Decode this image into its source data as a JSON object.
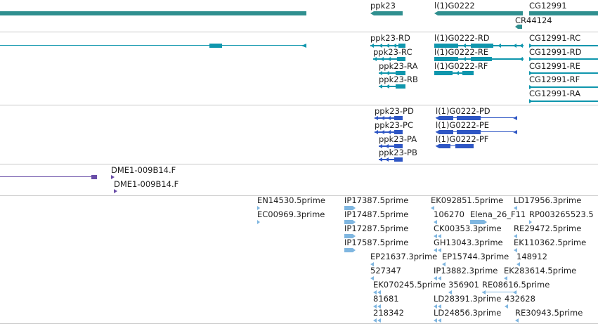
{
  "colors": {
    "gene": "#2f8f8f",
    "transcript": "#0f96ad",
    "protein": "#2e56c4",
    "clone": "#6a4ea8",
    "est": "#7fb6e0",
    "separator": "#c8c8c8"
  },
  "genes": {
    "ppk23": "ppk23",
    "lg0222": "l(1)G0222",
    "cg12991": "CG12991",
    "cr44124": "CR44124"
  },
  "transcripts": {
    "ppk23_rd": "ppk23-RD",
    "ppk23_rc": "ppk23-RC",
    "ppk23_ra": "ppk23-RA",
    "ppk23_rb": "ppk23-RB",
    "lg_rd": "l(1)G0222-RD",
    "lg_re": "l(1)G0222-RE",
    "lg_rf": "l(1)G0222-RF",
    "cg_rc": "CG12991-RC",
    "cg_rd": "CG12991-RD",
    "cg_re": "CG12991-RE",
    "cg_rf": "CG12991-RF",
    "cg_ra": "CG12991-RA"
  },
  "proteins": {
    "ppk23_pd": "ppk23-PD",
    "ppk23_pc": "ppk23-PC",
    "ppk23_pa": "ppk23-PA",
    "ppk23_pb": "ppk23-PB",
    "lg_pd": "l(1)G0222-PD",
    "lg_pe": "l(1)G0222-PE",
    "lg_pf": "l(1)G0222-PF"
  },
  "clones": {
    "c1": "DME1-009B14.F",
    "c2": "DME1-009B14.F"
  },
  "ests": {
    "e1": "EN14530.5prime",
    "e2": "EC00969.3prime",
    "e3": "IP17387.5prime",
    "e4": "IP17487.5prime",
    "e5": "IP17287.5prime",
    "e6": "IP17587.5prime",
    "e7": "EP21637.3prime",
    "e8": "527347",
    "e9": "EK070245.5prime",
    "e10": "81681",
    "e11": "218342",
    "e12": "EK092851.5prime",
    "e13": "106270",
    "e14": "Elena_26_F11",
    "e15": "CK00353.3prime",
    "e16": "GH13043.3prime",
    "e17": "EP15744.3prime",
    "e18": "IP13882.3prime",
    "e19": "356901",
    "e20": "LD28391.3prime",
    "e21": "LD24856.3prime",
    "e22": "LD17956.3prime",
    "e23": "RP003265523.5",
    "e24": "RE29472.5prime",
    "e25": "EK110362.5prime",
    "e26": "148912",
    "e27": "EK283614.5prime",
    "e28": "RE08616.5prime",
    "e29": "432628",
    "e30": "RE30943.5prime"
  }
}
